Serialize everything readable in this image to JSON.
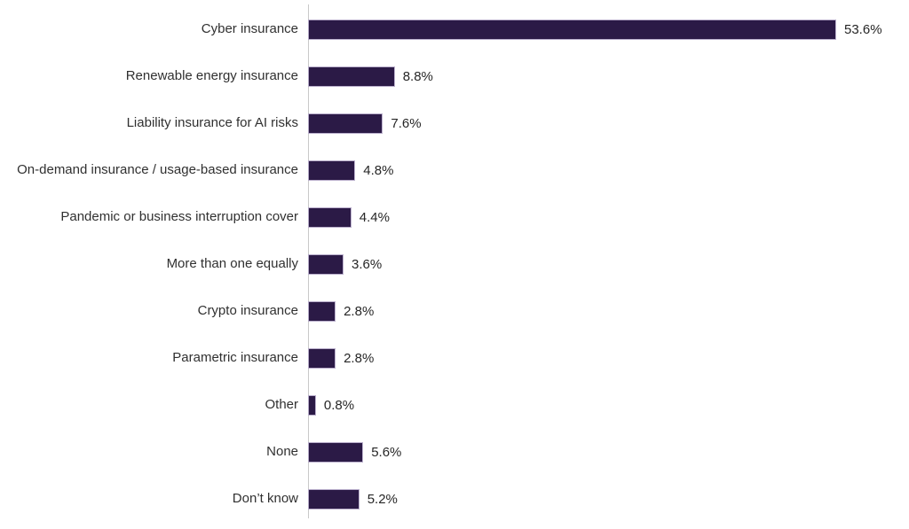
{
  "chart_data": {
    "type": "bar",
    "orientation": "horizontal",
    "title": "",
    "xlabel": "",
    "ylabel": "",
    "categories": [
      "Cyber insurance",
      "Renewable energy insurance",
      "Liability insurance for AI risks",
      "On-demand insurance / usage-based insurance",
      "Pandemic or business interruption cover",
      "More than one equally",
      "Crypto insurance",
      "Parametric insurance",
      "Other",
      "None",
      "Don’t know"
    ],
    "values": [
      53.6,
      8.8,
      7.6,
      4.8,
      4.4,
      3.6,
      2.8,
      2.8,
      0.8,
      5.6,
      5.2
    ],
    "value_labels": [
      "53.6%",
      "8.8%",
      "7.6%",
      "4.8%",
      "4.4%",
      "3.6%",
      "2.8%",
      "2.8%",
      "0.8%",
      "5.6%",
      "5.2%"
    ],
    "xlim": [
      0,
      60
    ],
    "grid": false,
    "legend": false,
    "bar_color": "#2b1a46",
    "axis_line_color": "#c9c9c9",
    "category_label_color": "#303030",
    "value_label_color": "#262626"
  }
}
